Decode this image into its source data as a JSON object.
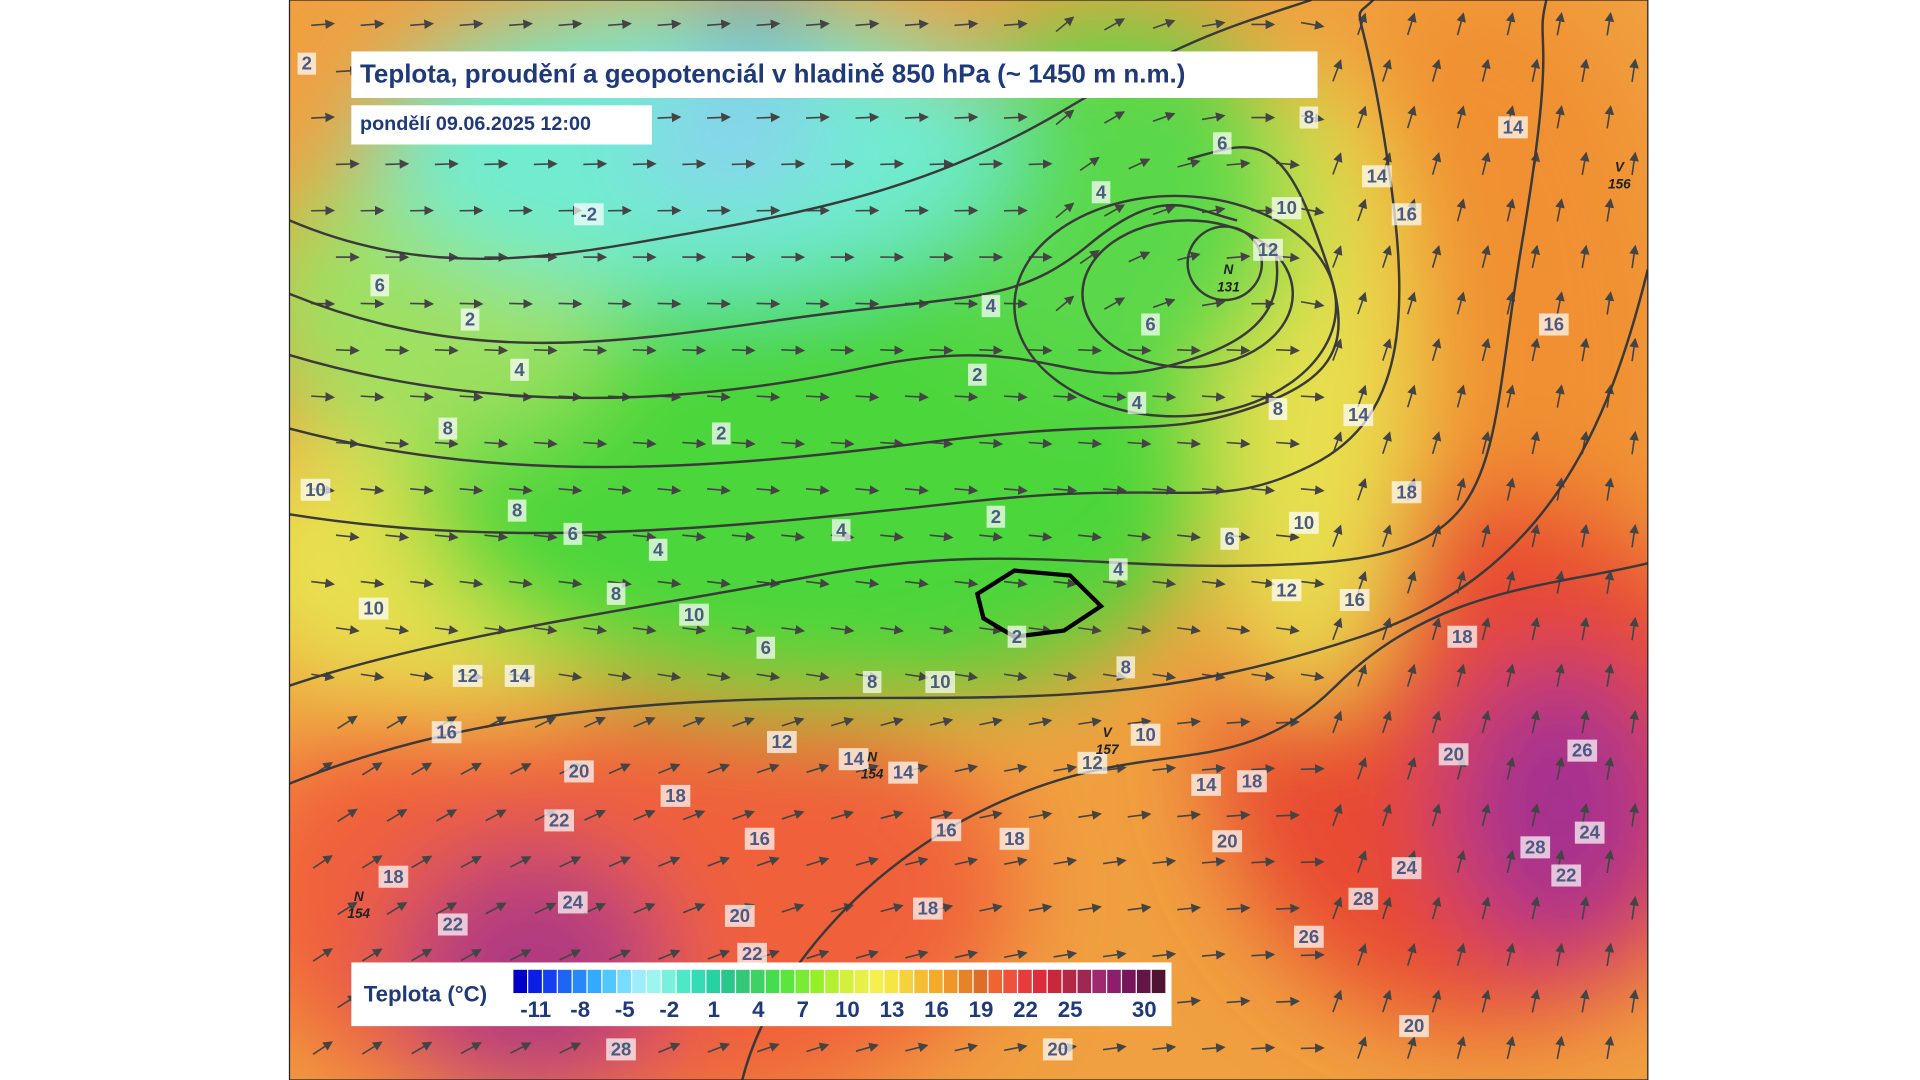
{
  "header": {
    "title": "Teplota, proudění a geopotenciál v hladině 850 hPa (~ 1450 m n.m.)",
    "subtitle": "pondělí 09.06.2025 12:00"
  },
  "legend": {
    "label": "Teplota (°C)",
    "ticks": [
      -11,
      -8,
      -5,
      -2,
      1,
      4,
      7,
      10,
      13,
      16,
      19,
      22,
      25,
      30
    ],
    "colors": [
      "#0000c8",
      "#0a1ee6",
      "#1440f0",
      "#1e64f5",
      "#2888fa",
      "#32aaff",
      "#50c8ff",
      "#78dcff",
      "#a0ecff",
      "#9cf5f0",
      "#78f0dc",
      "#50e6c8",
      "#32dcb4",
      "#28d2a0",
      "#28c88c",
      "#32c878",
      "#3cd264",
      "#46dc50",
      "#5ae63c",
      "#78eb32",
      "#96f028",
      "#b4f032",
      "#d2f03c",
      "#e6f046",
      "#f5f050",
      "#f5e646",
      "#f5d23c",
      "#f5be32",
      "#f5aa28",
      "#f09628",
      "#e68228",
      "#dc6e28",
      "#f06432",
      "#f0503c",
      "#e63c3c",
      "#dc2d3c",
      "#c8283c",
      "#b42846",
      "#a02850",
      "#a0286e",
      "#8c1e6e",
      "#78145a",
      "#641446",
      "#501432"
    ]
  },
  "map": {
    "isotherm_labels": [
      2,
      -2,
      6,
      2,
      4,
      8,
      10,
      8,
      6,
      4,
      8,
      10,
      10,
      12,
      14,
      16,
      20,
      18,
      22,
      18,
      24,
      22,
      20,
      22,
      16,
      28,
      2,
      4,
      6,
      8,
      10,
      12,
      14,
      14,
      16,
      18,
      18,
      20,
      2,
      2,
      4,
      4,
      6,
      6,
      4,
      8,
      10,
      12,
      14,
      16,
      14,
      16,
      14,
      8,
      6,
      4,
      10,
      12,
      16,
      18,
      18,
      8,
      10,
      12,
      14,
      18,
      20,
      20,
      26,
      24,
      28,
      24,
      22,
      28,
      26,
      20,
      2
    ],
    "pressure_centers": [
      {
        "type": "V",
        "value": 156
      },
      {
        "type": "N",
        "value": 131
      },
      {
        "type": "V",
        "value": 157
      },
      {
        "type": "N",
        "value": 154
      },
      {
        "type": "N",
        "value": 154
      }
    ]
  }
}
